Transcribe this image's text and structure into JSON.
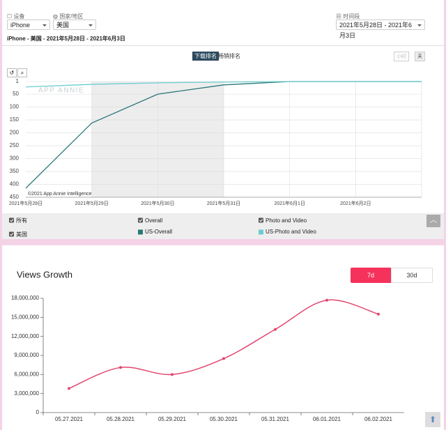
{
  "controls": {
    "device_label": "设备",
    "device_value": "iPhone",
    "country_label": "国家/地区",
    "country_value": "美国",
    "period_label": "时间段",
    "period_value": "2021年5月28日 - 2021年6月3日",
    "subtitle": "iPhone - 美国 - 2021年5月28日 - 2021年6月3日",
    "tabs": [
      "下载排名",
      "畅销排名"
    ],
    "granularity": [
      "小时",
      "天"
    ],
    "filters": [
      "所有",
      "美国",
      "Overall",
      "Photo and Video"
    ]
  },
  "chart_data": [
    {
      "type": "line",
      "watermark": "APP ANNIE",
      "credit": "©2021 App Annie Intelligence",
      "categories": [
        "2021年5月28日",
        "2021年5月29日",
        "2021年5月30日",
        "2021年5月31日",
        "2021年6月1日",
        "2021年6月2日",
        null
      ],
      "series": [
        {
          "name": "US-Overall",
          "color": "#2b7677",
          "values": [
            415,
            162,
            50,
            14,
            1,
            1,
            1
          ]
        },
        {
          "name": "US-Photo and Video",
          "color": "#6ccdd0",
          "values": [
            22,
            12,
            6,
            3,
            1,
            1,
            1
          ]
        }
      ],
      "ylim": [
        1,
        450
      ],
      "yticks": [
        1,
        50,
        100,
        150,
        200,
        250,
        300,
        350,
        400,
        450
      ],
      "y_inverted": true,
      "grid": true,
      "shaded_categories": [
        1,
        3
      ]
    },
    {
      "type": "line",
      "smooth": true,
      "title": "Views Growth",
      "toggle": [
        "7d",
        "30d"
      ],
      "categories": [
        "05.27.2021",
        "05.28.2021",
        "05.29.2021",
        "05.30.2021",
        "05.31.2021",
        "06.01.2021",
        "06.02.2021"
      ],
      "series": [
        {
          "name": "Views",
          "color": "#e2466d",
          "values": [
            3800000,
            7100000,
            6000000,
            8500000,
            13100000,
            17700000,
            15500000
          ]
        }
      ],
      "ylim": [
        0,
        18000000
      ],
      "yticks": [
        {
          "value": 0,
          "label": "0"
        },
        {
          "value": 3000000,
          "label": "3,000,000"
        },
        {
          "value": 6000000,
          "label": "6,000,000"
        },
        {
          "value": 9000000,
          "label": "9,000,000"
        },
        {
          "value": 12000000,
          "label": "12,000,000"
        },
        {
          "value": 15000000,
          "label": "15,000,000"
        },
        {
          "value": 18000000,
          "label": "18,000,000"
        }
      ],
      "grid": false,
      "show_legend": false
    }
  ]
}
